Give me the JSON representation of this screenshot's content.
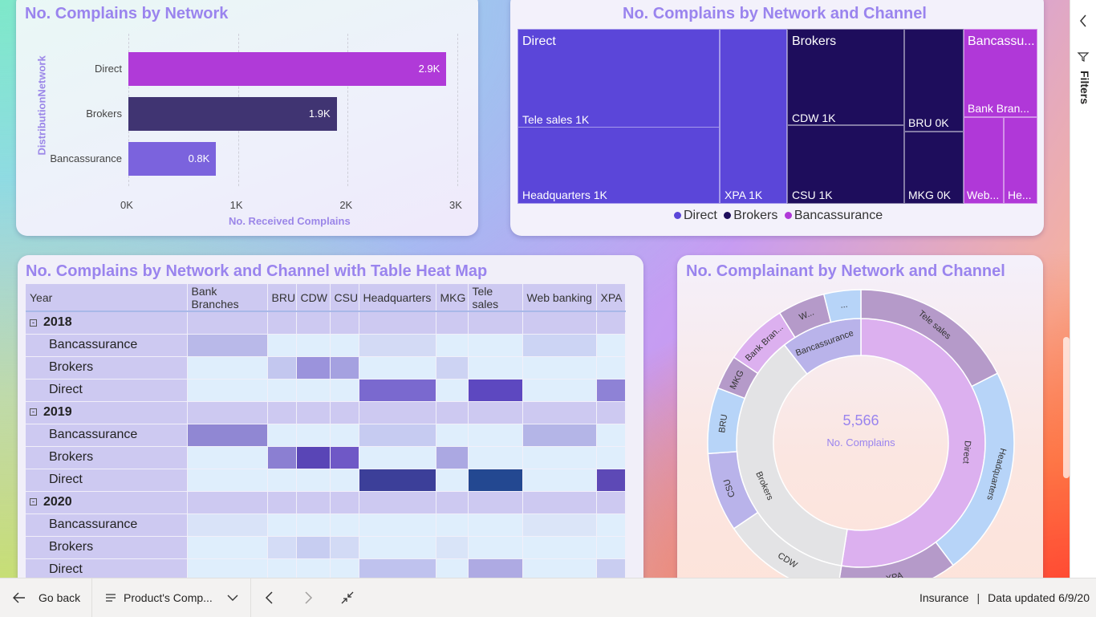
{
  "bar_card": {
    "title": "No. Complains by Network",
    "y_axis_title": "DistributionNetwork",
    "x_axis_title": "No. Received Complains"
  },
  "treemap_card": {
    "title": "No. Complains by Network and Channel",
    "labels": {
      "direct": "Direct",
      "tele_sales": "Tele sales 1K",
      "headquarters": "Headquarters 1K",
      "xpa": "XPA 1K",
      "brokers": "Brokers",
      "cdw": "CDW 1K",
      "csu": "CSU 1K",
      "bru": "BRU 0K",
      "mkg": "MKG 0K",
      "bancassurance": "Bancassu...",
      "bank_branches": "Bank Bran...",
      "web": "Web...",
      "he": "He..."
    },
    "legend": [
      {
        "label": "Direct",
        "color": "#5b46d9"
      },
      {
        "label": "Brokers",
        "color": "#1e0d5c"
      },
      {
        "label": "Bancassurance",
        "color": "#b038d8"
      }
    ]
  },
  "heatmap_card": {
    "title": "No. Complains by Network and Channel with Table Heat Map",
    "columns": [
      "Year",
      "Bank Branches",
      "BRU",
      "CDW",
      "CSU",
      "Headquarters",
      "MKG",
      "Tele sales",
      "Web banking",
      "XPA"
    ],
    "expander_glyph": "⊟",
    "rows": [
      {
        "label": "2018",
        "type": "year",
        "cells": [
          "#cdc9f1",
          "#cdc9f1",
          "#cdc9f1",
          "#cdc9f1",
          "#cdc9f1",
          "#cdc9f1",
          "#cdc9f1",
          "#cdc9f1",
          "#cdc9f1"
        ]
      },
      {
        "label": "Bancassurance",
        "type": "sub",
        "cells": [
          "#b9b9e9",
          "#dfeefc",
          "#dfeefc",
          "#dfeefc",
          "#d3daf5",
          "#dfeefc",
          "#dfeefc",
          "#ccd4f4",
          "#dfeefc"
        ]
      },
      {
        "label": "Brokers",
        "type": "sub",
        "cells": [
          "#dfeefc",
          "#c3c7ef",
          "#9b93dc",
          "#a5a1e0",
          "#dfeefc",
          "#cdd3f3",
          "#dfeefc",
          "#dfeefc",
          "#dfeefc"
        ]
      },
      {
        "label": "Direct",
        "type": "sub",
        "cells": [
          "#dfeefc",
          "#dfeefc",
          "#dfeefc",
          "#dfeefc",
          "#7a69cf",
          "#dfeefc",
          "#5d48c0",
          "#dfeefc",
          "#8e82d6"
        ]
      },
      {
        "label": "2019",
        "type": "year",
        "cells": [
          "#cdc9f1",
          "#cdc9f1",
          "#cdc9f1",
          "#cdc9f1",
          "#cdc9f1",
          "#cdc9f1",
          "#cdc9f1",
          "#cdc9f1",
          "#cdc9f1"
        ]
      },
      {
        "label": "Bancassurance",
        "type": "sub",
        "cells": [
          "#9087d3",
          "#dfeefc",
          "#dfeefc",
          "#dfeefc",
          "#c6cbf1",
          "#dfeefc",
          "#dfeefc",
          "#b4b5e7",
          "#dfeefc"
        ]
      },
      {
        "label": "Brokers",
        "type": "sub",
        "cells": [
          "#dfeefc",
          "#8b7fd2",
          "#5945b6",
          "#6f58c6",
          "#dfeefc",
          "#aba8e2",
          "#dfeefc",
          "#dfeefc",
          "#dfeefc"
        ]
      },
      {
        "label": "Direct",
        "type": "sub",
        "cells": [
          "#dfeefc",
          "#dfeefc",
          "#dfeefc",
          "#dfeefc",
          "#3c3f99",
          "#dfeefc",
          "#234891",
          "#dfeefc",
          "#5d49b6"
        ]
      },
      {
        "label": "2020",
        "type": "year",
        "cells": [
          "#cdc9f1",
          "#cdc9f1",
          "#cdc9f1",
          "#cdc9f1",
          "#cdc9f1",
          "#cdc9f1",
          "#cdc9f1",
          "#cdc9f1",
          "#cdc9f1"
        ]
      },
      {
        "label": "Bancassurance",
        "type": "sub",
        "cells": [
          "#d9e3f8",
          "#dfeefc",
          "#dfeefc",
          "#dfeefc",
          "#dfeefc",
          "#dfeefc",
          "#dfeefc",
          "#dbe5f8",
          "#dfeefc"
        ]
      },
      {
        "label": "Brokers",
        "type": "sub",
        "cells": [
          "#dfeefc",
          "#d4dcf6",
          "#c7cdf1",
          "#d2daf5",
          "#dfeefc",
          "#d9e4f8",
          "#dfeefc",
          "#dfeefc",
          "#dfeefc"
        ]
      },
      {
        "label": "Direct",
        "type": "sub",
        "cells": [
          "#dfeefc",
          "#dfeefc",
          "#dfeefc",
          "#dfeefc",
          "#bfc2ee",
          "#dfeefc",
          "#aeaae3",
          "#dfeefc",
          "#c9cdf1"
        ]
      }
    ]
  },
  "sunburst_card": {
    "title": "No. Complainant by Network and Channel",
    "center_value": "5,566",
    "center_label": "No. Complains",
    "inner_labels": {
      "direct": "Direct",
      "brokers": "Brokers",
      "bancassurance": "Bancassurance"
    },
    "outer_labels": {
      "tele_sales": "Tele sales",
      "headquarters": "Headquarters",
      "xpa": "XPA",
      "cdw": "CDW",
      "csu": "CSU",
      "bru": "BRU",
      "mkg": "MKG",
      "bank_branches": "Bank Bran...",
      "web": "W...",
      "ellipsis": "..."
    }
  },
  "chart_data": [
    {
      "type": "bar",
      "title": "No. Complains by Network",
      "ylabel": "DistributionNetwork",
      "xlabel": "No. Received Complains",
      "categories": [
        "Direct",
        "Brokers",
        "Bancassurance"
      ],
      "values": [
        2900,
        1900,
        800
      ],
      "data_labels": [
        "2.9K",
        "1.9K",
        "0.8K"
      ],
      "colors": [
        "#b03ad8",
        "#403472",
        "#7b63dd"
      ],
      "xlim": [
        0,
        3000
      ],
      "xticks": [
        "0K",
        "1K",
        "2K",
        "3K"
      ],
      "grid": true
    }
  ],
  "bottom_bar": {
    "go_back": "Go back",
    "page_name": "Product's Comp...",
    "dataset": "Insurance",
    "updated": "Data updated 6/9/20"
  },
  "filters_pane": {
    "label": "Filters"
  }
}
